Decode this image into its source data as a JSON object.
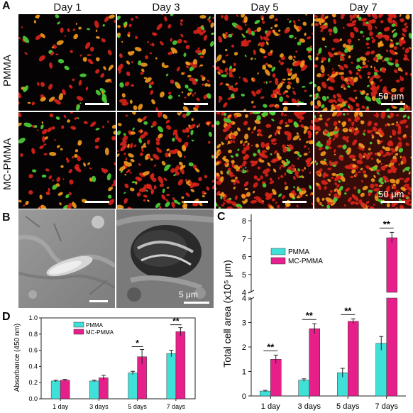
{
  "panel_a": {
    "label": "A",
    "columns": [
      "Day 1",
      "Day 3",
      "Day 5",
      "Day 7"
    ],
    "rows": [
      "PMMA",
      "MC-PMMA"
    ],
    "scale_label": "50 μm",
    "cell_density": [
      [
        0.15,
        0.35,
        0.55,
        0.85
      ],
      [
        0.2,
        0.5,
        0.9,
        1.0
      ]
    ],
    "colors": {
      "cell_red": "#d9241a",
      "cell_orange": "#f29a1c",
      "cell_green": "#4fd23a",
      "background": "#050303"
    }
  },
  "panel_b": {
    "label": "B",
    "scale_label": "5 μm"
  },
  "chart_data": [
    {
      "panel": "D",
      "type": "bar",
      "categories": [
        "1 day",
        "3 days",
        "5 days",
        "7 days"
      ],
      "series": [
        {
          "name": "PMMA",
          "values": [
            0.22,
            0.22,
            0.32,
            0.56
          ],
          "errors": [
            0.01,
            0.01,
            0.02,
            0.04
          ],
          "color": "#3fe0d8"
        },
        {
          "name": "MC-PMMA",
          "values": [
            0.23,
            0.26,
            0.52,
            0.83
          ],
          "errors": [
            0.01,
            0.03,
            0.09,
            0.05
          ],
          "color": "#e61f8a"
        }
      ],
      "significance": [
        "",
        "",
        "*",
        "**"
      ],
      "ylabel": "Absorbance (450 nm)",
      "ylim": [
        0.0,
        1.0
      ],
      "yticks": [
        "0.0",
        "0.2",
        "0.4",
        "0.6",
        "0.8",
        "1.0"
      ],
      "legend": "top-left"
    },
    {
      "panel": "C",
      "type": "bar",
      "categories": [
        "1 day",
        "3 days",
        "5 days",
        "7 days"
      ],
      "series": [
        {
          "name": "PMMA",
          "values": [
            0.2,
            0.65,
            0.95,
            2.15
          ],
          "errors": [
            0.03,
            0.05,
            0.18,
            0.28
          ],
          "color": "#3fe0d8"
        },
        {
          "name": "MC-PMMA",
          "values": [
            1.5,
            2.75,
            3.05,
            7.05
          ],
          "errors": [
            0.17,
            0.2,
            0.1,
            0.3
          ],
          "color": "#e61f8a"
        }
      ],
      "significance": [
        "**",
        "**",
        "**",
        "**"
      ],
      "ylabel": "Total cell area (x10⁵ μm)",
      "ylim": [
        0,
        8.6
      ],
      "axis_break": [
        4,
        4.3
      ],
      "yticks": [
        "0",
        "1",
        "2",
        "3",
        "4",
        "4",
        "5",
        "6",
        "7",
        "8"
      ],
      "legend": "top-left"
    }
  ]
}
